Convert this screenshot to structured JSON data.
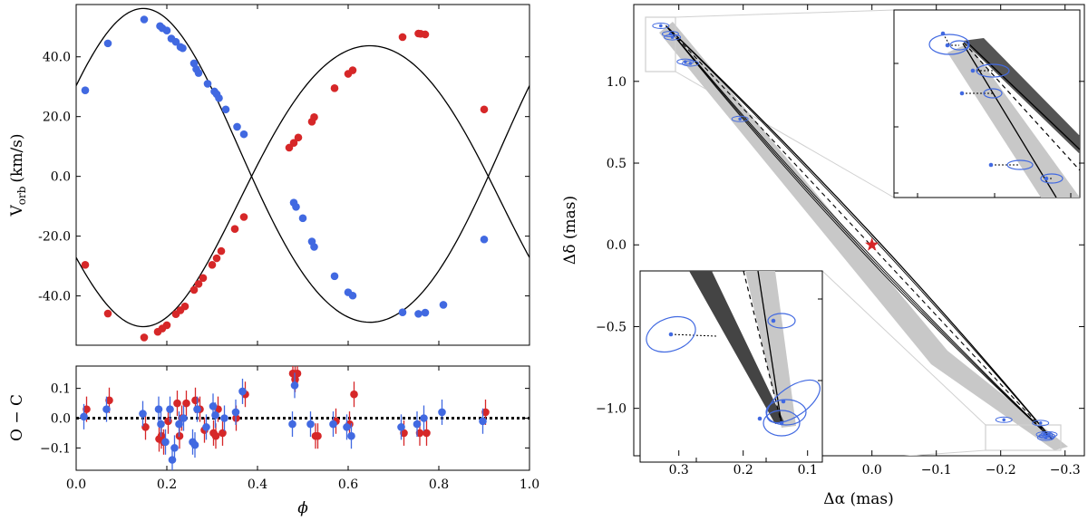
{
  "chart_data": [
    {
      "type": "line",
      "panel": "rv-curve",
      "ylabel_main": "V",
      "ylabel_sub": "orb",
      "ylabel_unit": "(km/s)",
      "xlim": [
        0.0,
        1.0
      ],
      "ylim": [
        -56.5,
        57.5
      ],
      "yticks": [
        -40.0,
        -20.0,
        0.0,
        20.0,
        40.0
      ],
      "ytick_labels": [
        "-40.0",
        "-20.0",
        "0.0",
        "20.0",
        "40.0"
      ],
      "model": {
        "K1": 52.5,
        "K2": 47.0,
        "peak_phase": 0.148
      },
      "series": [
        {
          "name": "primary",
          "color": "#4169e1",
          "phase": [
            0.02,
            0.07,
            0.15,
            0.185,
            0.19,
            0.2,
            0.21,
            0.22,
            0.23,
            0.235,
            0.26,
            0.265,
            0.27,
            0.29,
            0.305,
            0.31,
            0.315,
            0.33,
            0.355,
            0.37,
            0.48,
            0.485,
            0.5,
            0.52,
            0.525,
            0.57,
            0.6,
            0.61,
            0.72,
            0.755,
            0.77,
            0.81,
            0.9
          ],
          "v": [
            28.8,
            44.5,
            52.5,
            50.3,
            49.6,
            48.8,
            46.1,
            45.0,
            43.3,
            42.9,
            37.8,
            35.9,
            34.6,
            31.0,
            28.4,
            27.5,
            26.2,
            22.4,
            16.6,
            14.1,
            -8.8,
            -10.2,
            -14.0,
            -21.8,
            -23.6,
            -33.4,
            -38.8,
            -39.9,
            -45.5,
            -46.0,
            -45.6,
            -43.0,
            -21.1
          ]
        },
        {
          "name": "secondary",
          "color": "#d62728",
          "phase": [
            0.02,
            0.07,
            0.15,
            0.18,
            0.19,
            0.2,
            0.22,
            0.23,
            0.24,
            0.26,
            0.27,
            0.28,
            0.3,
            0.31,
            0.32,
            0.35,
            0.37,
            0.47,
            0.48,
            0.49,
            0.52,
            0.525,
            0.57,
            0.6,
            0.61,
            0.72,
            0.755,
            0.76,
            0.77,
            0.9
          ],
          "v": [
            -29.6,
            -45.9,
            -53.9,
            -52.0,
            -50.9,
            -49.8,
            -46.1,
            -44.8,
            -43.5,
            -38.0,
            -36.0,
            -34.0,
            -29.6,
            -27.4,
            -25.0,
            -17.6,
            -13.6,
            9.6,
            11.2,
            13.0,
            18.3,
            19.8,
            29.5,
            34.3,
            35.5,
            46.6,
            47.8,
            47.7,
            47.5,
            22.4
          ]
        }
      ]
    },
    {
      "type": "scatter",
      "panel": "residuals",
      "xlabel": "ϕ",
      "ylabel": "O − C",
      "xlim": [
        0.0,
        1.0
      ],
      "ylim": [
        -0.175,
        0.175
      ],
      "xticks": [
        0.0,
        0.2,
        0.4,
        0.6,
        0.8,
        1.0
      ],
      "xtick_labels": [
        "0.0",
        "0.2",
        "0.4",
        "0.6",
        "0.8",
        "1.0"
      ],
      "yticks": [
        -0.1,
        0.0,
        0.1
      ],
      "ytick_labels": [
        "−0.1",
        "0.0",
        "0.1"
      ],
      "series": [
        {
          "name": "primary",
          "color": "#4169e1",
          "phase": [
            0.02,
            0.07,
            0.15,
            0.185,
            0.19,
            0.2,
            0.21,
            0.215,
            0.22,
            0.23,
            0.24,
            0.26,
            0.265,
            0.27,
            0.29,
            0.305,
            0.31,
            0.33,
            0.355,
            0.37,
            0.48,
            0.485,
            0.52,
            0.57,
            0.6,
            0.61,
            0.72,
            0.755,
            0.77,
            0.81,
            0.9
          ],
          "res": [
            0.005,
            0.03,
            0.015,
            0.03,
            -0.02,
            -0.08,
            0.03,
            -0.14,
            -0.1,
            -0.02,
            0.0,
            -0.08,
            -0.09,
            0.03,
            -0.03,
            0.04,
            0.01,
            0.0,
            0.02,
            0.09,
            -0.02,
            0.11,
            -0.02,
            -0.02,
            -0.03,
            -0.06,
            -0.03,
            -0.02,
            0.0,
            0.02,
            -0.01
          ]
        },
        {
          "name": "secondary",
          "color": "#d62728",
          "phase": [
            0.02,
            0.07,
            0.15,
            0.18,
            0.185,
            0.19,
            0.2,
            0.22,
            0.225,
            0.23,
            0.24,
            0.26,
            0.27,
            0.28,
            0.3,
            0.305,
            0.31,
            0.32,
            0.35,
            0.37,
            0.475,
            0.48,
            0.485,
            0.525,
            0.53,
            0.57,
            0.6,
            0.61,
            0.72,
            0.755,
            0.77,
            0.9
          ],
          "res": [
            0.03,
            0.06,
            -0.03,
            -0.07,
            -0.06,
            -0.08,
            -0.01,
            0.05,
            -0.06,
            0.0,
            0.05,
            0.06,
            0.03,
            -0.04,
            -0.05,
            -0.06,
            0.03,
            -0.05,
            0.0,
            0.08,
            0.15,
            0.13,
            0.15,
            -0.06,
            -0.06,
            -0.01,
            -0.02,
            0.08,
            -0.05,
            -0.05,
            -0.05,
            0.02
          ]
        }
      ]
    },
    {
      "type": "scatter",
      "panel": "astrometric-orbit",
      "xlabel": "Δα (mas)",
      "ylabel": "Δδ (mas)",
      "xlim": [
        0.37,
        -0.33
      ],
      "ylim": [
        -1.29,
        1.47
      ],
      "xticks": [
        0.3,
        0.2,
        0.1,
        0.0,
        -0.1,
        -0.2,
        -0.3
      ],
      "xtick_labels": [
        "0.3",
        "0.2",
        "0.1",
        "0.0",
        "−0.1",
        "−0.2",
        "−0.3"
      ],
      "yticks": [
        -1.0,
        -0.5,
        0.0,
        0.5,
        1.0
      ],
      "ytick_labels": [
        "−1.0",
        "−0.5",
        "0.0",
        "0.5",
        "1.0"
      ],
      "center_marker": {
        "x": 0.0,
        "y": 0.0,
        "symbol": "star",
        "color": "#d62728"
      },
      "orbit_end_a": [
        0.32,
        1.34
      ],
      "orbit_end_b": [
        -0.28,
        -1.19
      ],
      "observations": {
        "color": "#4169e1",
        "x": [
          0.328,
          0.313,
          0.31,
          0.29,
          0.282,
          0.205,
          -0.205,
          -0.262,
          -0.268,
          -0.27,
          -0.272,
          -0.275
        ],
        "y": [
          1.34,
          1.29,
          1.27,
          1.12,
          1.11,
          0.77,
          -1.07,
          -1.09,
          -1.16,
          -1.18,
          -1.17,
          -1.16
        ]
      },
      "insets": [
        {
          "name": "upper-right",
          "region_x": [
            0.36,
            0.27
          ],
          "region_y": [
            1.08,
            1.4
          ]
        },
        {
          "name": "lower-left",
          "region_x": [
            -0.18,
            -0.3
          ],
          "region_y": [
            -1.25,
            -1.04
          ]
        }
      ]
    }
  ]
}
